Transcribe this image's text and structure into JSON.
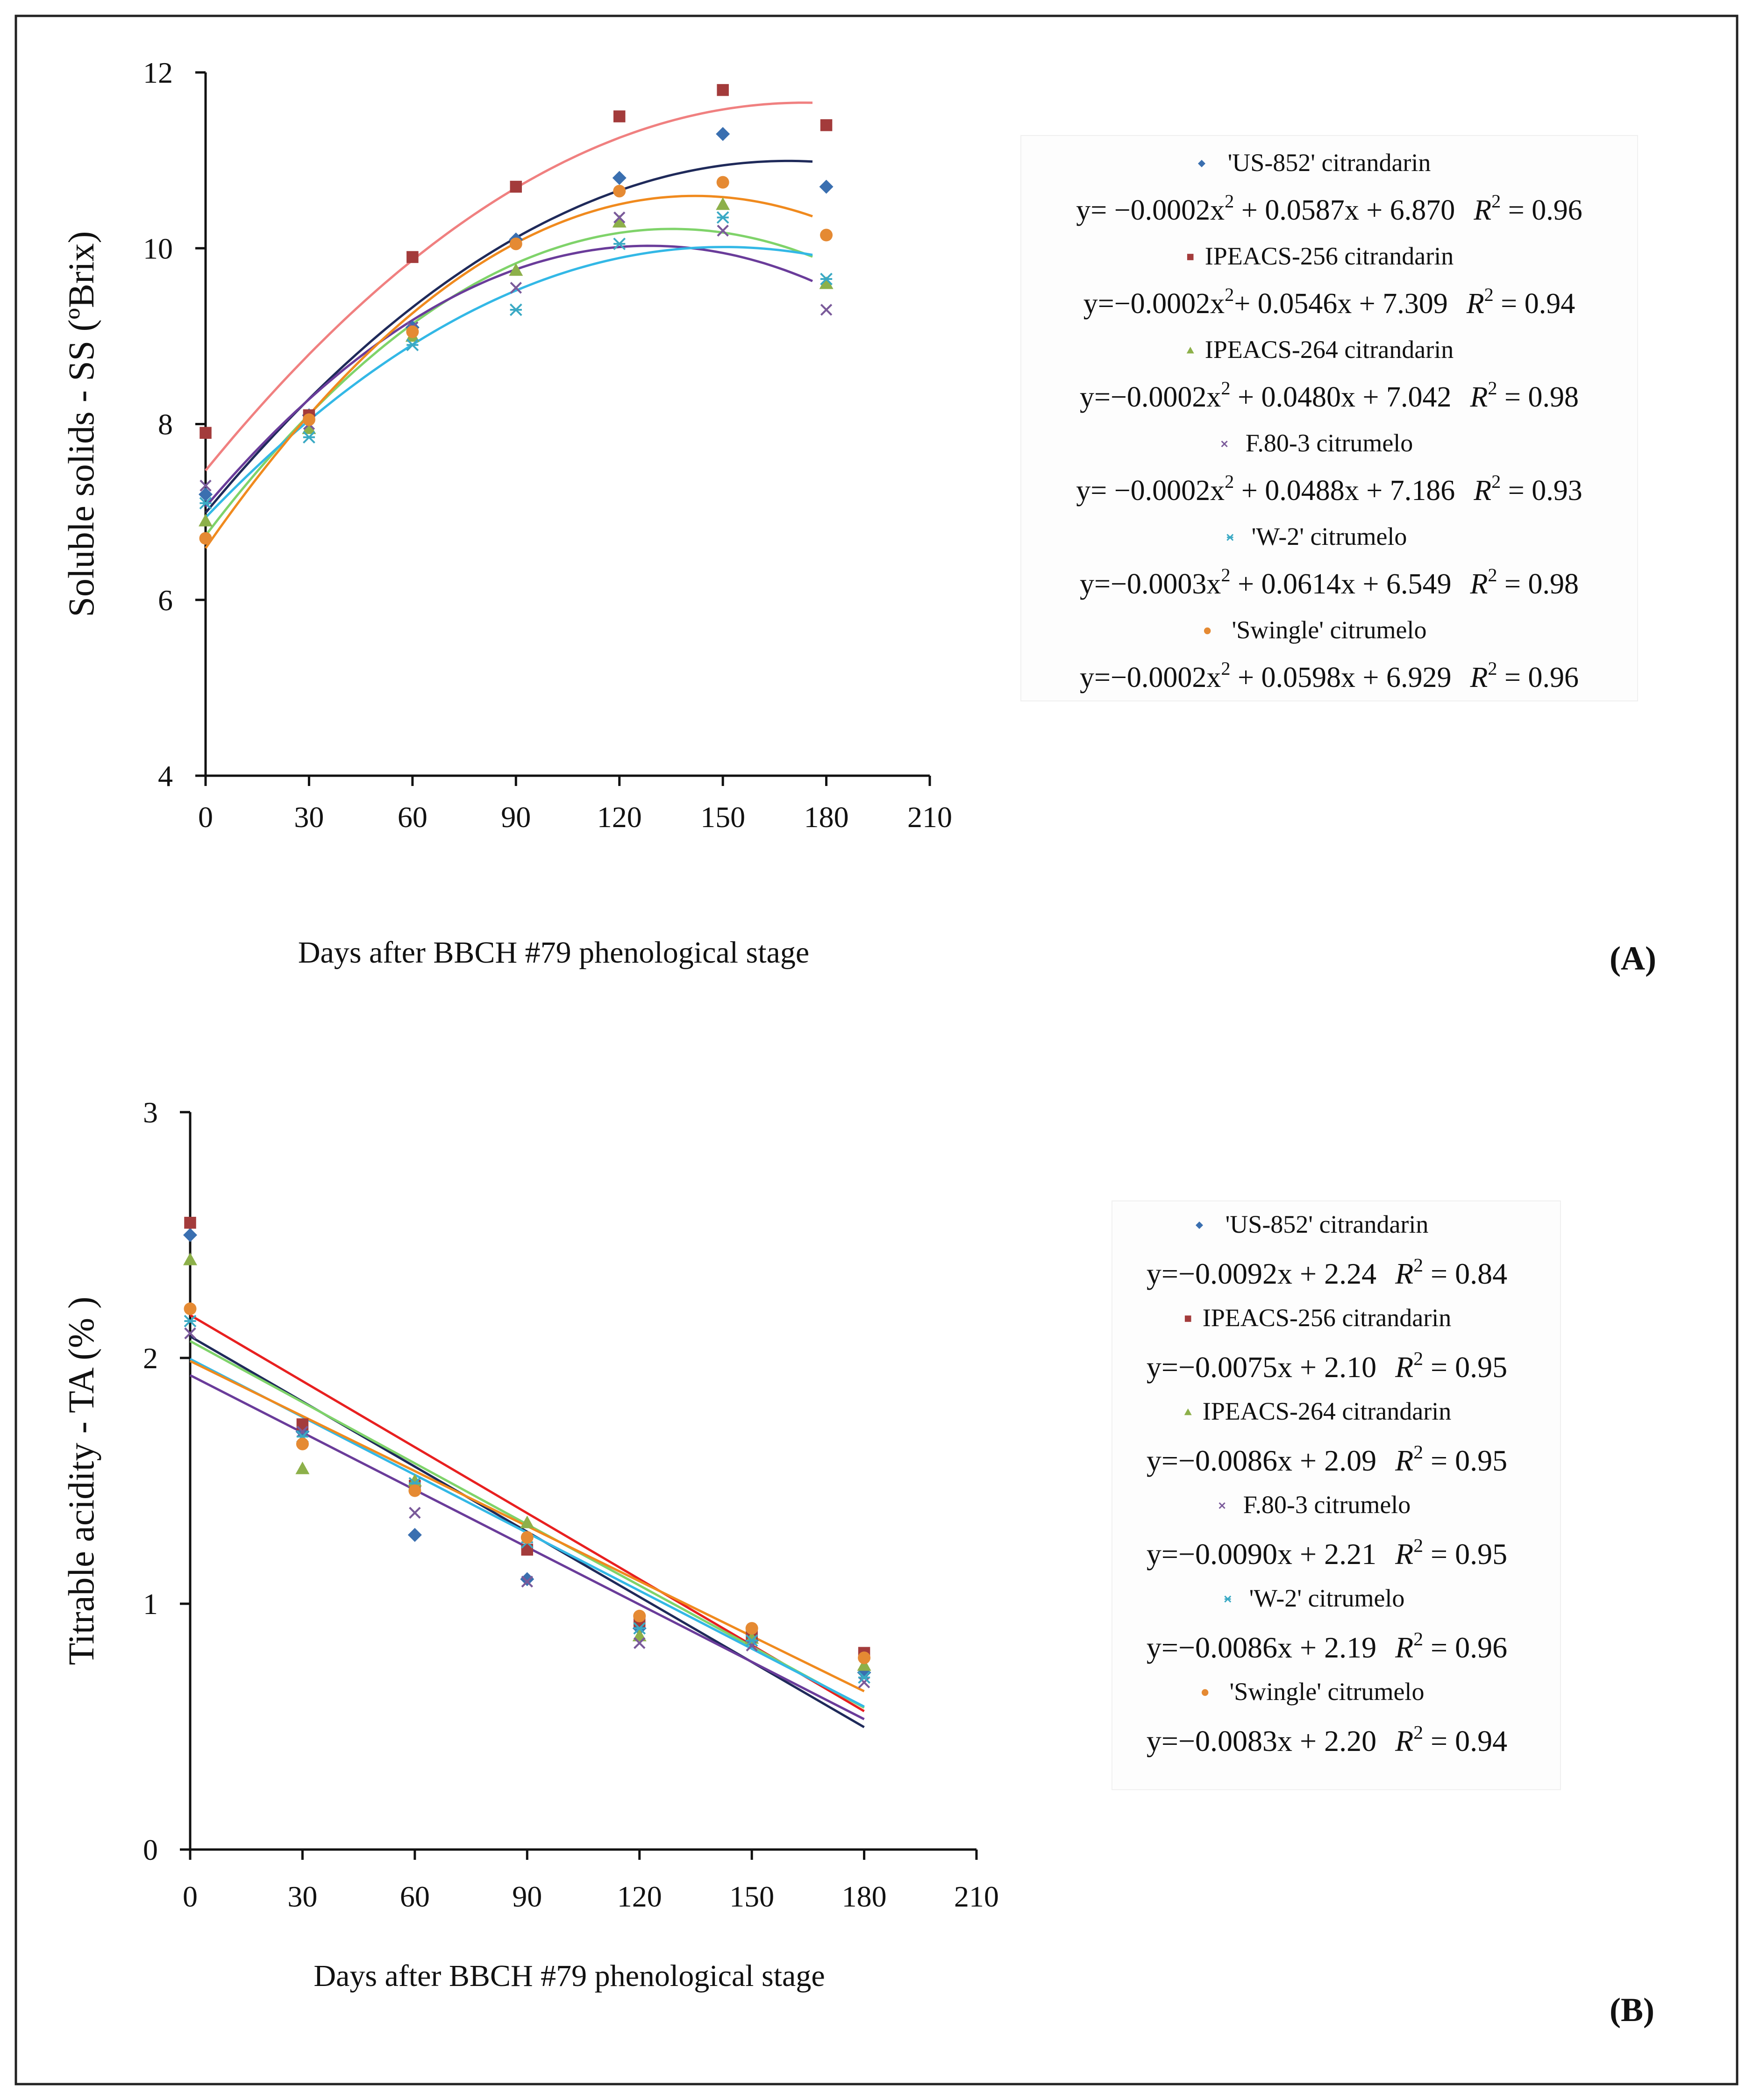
{
  "figure": {
    "panel_label_a": "(A)",
    "panel_label_b": "(B)",
    "colors": {
      "axis": "#111111",
      "frame": "#222222",
      "us852_marker": "#3a6fb0",
      "ipeacs256_marker": "#a33b3b",
      "ipeacs264_marker": "#8db04a",
      "f803_marker": "#7a5a9a",
      "w2_marker": "#3aa9c4",
      "swingle_marker": "#e58a33",
      "us852_line": "#1f2a5a",
      "ipeacs256_line_a": "#f08080",
      "ipeacs256_line_b": "#e82020",
      "ipeacs264_line": "#7fd36a",
      "f803_line": "#6a3c9a",
      "w2_line": "#33b8e6",
      "swingle_line": "#f08a1e"
    }
  },
  "chart_data": [
    {
      "id": "A",
      "type": "scatter",
      "title": "",
      "xlabel": "Days after BBCH #79 phenological stage",
      "ylabel": "Soluble solids - SS (ºBrix)",
      "xlim": [
        0,
        210
      ],
      "ylim": [
        4,
        12
      ],
      "xticks": [
        "0",
        "30",
        "60",
        "90",
        "120",
        "150",
        "180",
        "210"
      ],
      "yticks": [
        "4",
        "6",
        "8",
        "10",
        "12"
      ],
      "x": [
        0,
        30,
        60,
        90,
        120,
        150,
        180
      ],
      "series": [
        {
          "key": "us852",
          "name": "'US-852' citrandarin",
          "marker": "diamond",
          "values": [
            7.2,
            8.1,
            9.1,
            10.1,
            10.8,
            11.3,
            10.7
          ],
          "fit": "quadratic",
          "equation_main": "y= −0.0002x",
          "equation_rest": " + 0.0587x + 6.870",
          "r2": "0.96"
        },
        {
          "key": "ipeacs256",
          "name": "IPEACS-256 citrandarin",
          "marker": "square",
          "values": [
            7.9,
            8.1,
            9.9,
            10.7,
            11.5,
            11.8,
            11.4
          ],
          "fit": "quadratic",
          "equation_main": "y=−0.0002x",
          "equation_rest": "+ 0.0546x + 7.309",
          "r2": "0.94"
        },
        {
          "key": "ipeacs264",
          "name": "IPEACS-264 citrandarin",
          "marker": "triangle",
          "values": [
            6.9,
            7.95,
            9.0,
            9.75,
            10.3,
            10.5,
            9.6
          ],
          "fit": "quadratic",
          "equation_main": "y=−0.0002x",
          "equation_rest": " + 0.0480x + 7.042",
          "r2": "0.98"
        },
        {
          "key": "f803",
          "name": "F.80-3 citrumelo",
          "marker": "x",
          "values": [
            7.3,
            8.0,
            9.1,
            9.55,
            10.35,
            10.2,
            9.3
          ],
          "fit": "quadratic",
          "equation_main": "y= −0.0002x",
          "equation_rest": " + 0.0488x + 7.186",
          "r2": "0.93"
        },
        {
          "key": "w2",
          "name": "'W-2' citrumelo",
          "marker": "star",
          "values": [
            7.1,
            7.85,
            8.9,
            9.3,
            10.05,
            10.35,
            9.65
          ],
          "fit": "quadratic",
          "equation_main": "y=−0.0003x",
          "equation_rest": " + 0.0614x + 6.549",
          "r2": "0.98"
        },
        {
          "key": "swingle",
          "name": "'Swingle' citrumelo",
          "marker": "circle",
          "values": [
            6.7,
            8.05,
            9.05,
            10.05,
            10.65,
            10.75,
            10.15
          ],
          "fit": "quadratic",
          "equation_main": "y=−0.0002x",
          "equation_rest": " + 0.0598x + 6.929",
          "r2": "0.96"
        }
      ]
    },
    {
      "id": "B",
      "type": "scatter",
      "title": "",
      "xlabel": "Days after BBCH #79 phenological stage",
      "ylabel": "Titrable acidity - TA (% )",
      "xlim": [
        0,
        210
      ],
      "ylim": [
        0,
        3
      ],
      "xticks": [
        "0",
        "30",
        "60",
        "90",
        "120",
        "150",
        "180",
        "210"
      ],
      "yticks": [
        "0",
        "1",
        "2",
        "3"
      ],
      "x": [
        0,
        30,
        60,
        90,
        120,
        150,
        180
      ],
      "series": [
        {
          "key": "us852",
          "name": "'US-852' citrandarin",
          "marker": "diamond",
          "values": [
            2.5,
            1.7,
            1.28,
            1.1,
            0.9,
            0.85,
            0.72
          ],
          "fit": "linear",
          "equation_main": "y=−0.0092x + 2.24",
          "equation_rest": "",
          "r2": "0.84"
        },
        {
          "key": "ipeacs256",
          "name": "IPEACS-256 citrandarin",
          "marker": "square",
          "values": [
            2.55,
            1.73,
            1.48,
            1.22,
            0.93,
            0.87,
            0.8
          ],
          "fit": "linear",
          "equation_main": "y=−0.0075x + 2.10",
          "equation_rest": "",
          "r2": "0.95"
        },
        {
          "key": "ipeacs264",
          "name": "IPEACS-264 citrandarin",
          "marker": "triangle",
          "values": [
            2.4,
            1.55,
            1.5,
            1.33,
            0.87,
            0.86,
            0.75
          ],
          "fit": "linear",
          "equation_main": "y=−0.0086x + 2.09",
          "equation_rest": "",
          "r2": "0.95"
        },
        {
          "key": "f803",
          "name": "F.80-3 citrumelo",
          "marker": "x",
          "values": [
            2.1,
            1.7,
            1.37,
            1.09,
            0.84,
            0.83,
            0.68
          ],
          "fit": "linear",
          "equation_main": "y=−0.0090x + 2.21",
          "equation_rest": "",
          "r2": "0.95"
        },
        {
          "key": "w2",
          "name": "'W-2' citrumelo",
          "marker": "star",
          "values": [
            2.15,
            1.68,
            1.49,
            1.25,
            0.9,
            0.85,
            0.7
          ],
          "fit": "linear",
          "equation_main": "y=−0.0086x + 2.19",
          "equation_rest": "",
          "r2": "0.96"
        },
        {
          "key": "swingle",
          "name": "'Swingle' citrumelo",
          "marker": "circle",
          "values": [
            2.2,
            1.65,
            1.46,
            1.27,
            0.95,
            0.9,
            0.78
          ],
          "fit": "linear",
          "equation_main": "y=−0.0083x + 2.20",
          "equation_rest": "",
          "r2": "0.94"
        }
      ]
    }
  ]
}
